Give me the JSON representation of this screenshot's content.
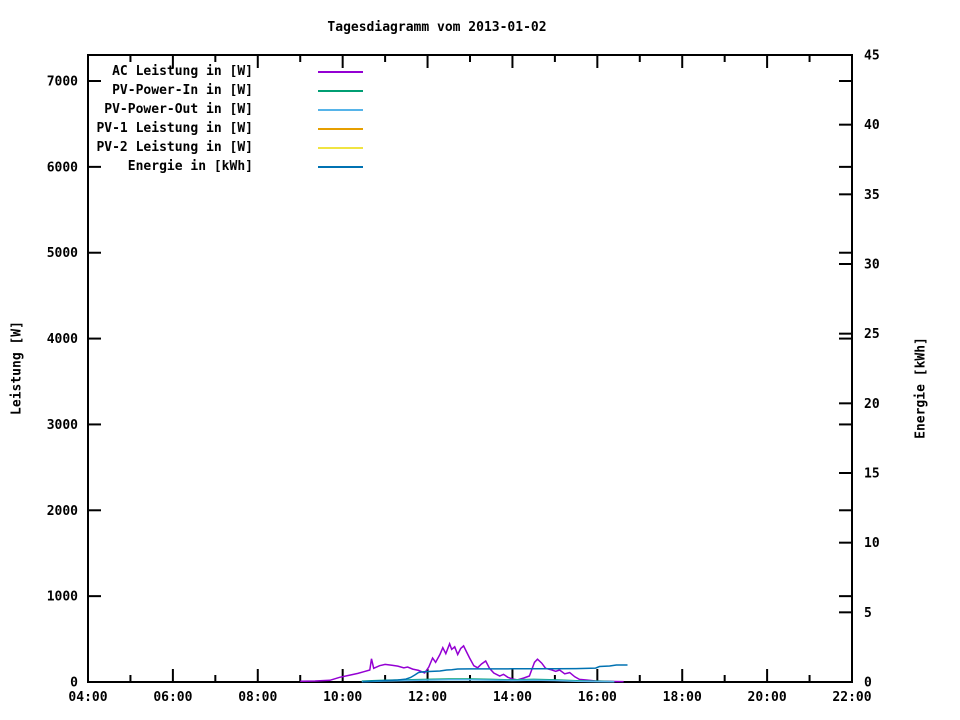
{
  "window": {
    "title": "Tagesdiagramm vom 2013-01-02"
  },
  "chart_data": {
    "type": "line",
    "title": "Tagesdiagramm vom 2013-01-02",
    "grid": false,
    "legend_position": "top-left-inside",
    "x_axis": {
      "unit": "time",
      "range_hours": [
        4,
        22
      ],
      "major_tick_labels": [
        "04:00",
        "06:00",
        "08:00",
        "10:00",
        "12:00",
        "14:00",
        "16:00",
        "18:00",
        "20:00",
        "22:00"
      ],
      "major_step_hours": 2,
      "minor_step_hours": 1
    },
    "y_left": {
      "label": "Leistung [W]",
      "ticks": [
        0,
        1000,
        2000,
        3000,
        4000,
        5000,
        6000,
        7000
      ],
      "range": [
        0,
        7303
      ]
    },
    "y_right": {
      "label": "Energie [kWh]",
      "ticks": [
        0,
        5,
        10,
        15,
        20,
        25,
        30,
        35,
        40,
        45
      ],
      "range": [
        0,
        45
      ]
    },
    "series": [
      {
        "name": "AC Leistung in [W]",
        "color": "#9400d3",
        "axis": "left",
        "points": [
          [
            9.0,
            8
          ],
          [
            9.35,
            12
          ],
          [
            9.7,
            20
          ],
          [
            9.93,
            55
          ],
          [
            10.17,
            80
          ],
          [
            10.36,
            100
          ],
          [
            10.5,
            120
          ],
          [
            10.64,
            140
          ],
          [
            10.68,
            270
          ],
          [
            10.73,
            160
          ],
          [
            10.87,
            190
          ],
          [
            11.0,
            205
          ],
          [
            11.16,
            195
          ],
          [
            11.3,
            185
          ],
          [
            11.44,
            165
          ],
          [
            11.53,
            175
          ],
          [
            11.65,
            150
          ],
          [
            11.79,
            135
          ],
          [
            11.93,
            105
          ],
          [
            12.03,
            175
          ],
          [
            12.12,
            280
          ],
          [
            12.19,
            230
          ],
          [
            12.29,
            320
          ],
          [
            12.36,
            400
          ],
          [
            12.43,
            330
          ],
          [
            12.52,
            445
          ],
          [
            12.57,
            380
          ],
          [
            12.64,
            410
          ],
          [
            12.71,
            320
          ],
          [
            12.78,
            390
          ],
          [
            12.85,
            420
          ],
          [
            12.92,
            350
          ],
          [
            12.99,
            280
          ],
          [
            13.09,
            190
          ],
          [
            13.18,
            165
          ],
          [
            13.27,
            210
          ],
          [
            13.37,
            245
          ],
          [
            13.46,
            160
          ],
          [
            13.56,
            105
          ],
          [
            13.7,
            70
          ],
          [
            13.79,
            90
          ],
          [
            13.89,
            55
          ],
          [
            14.0,
            35
          ],
          [
            14.12,
            25
          ],
          [
            14.26,
            45
          ],
          [
            14.4,
            70
          ],
          [
            14.52,
            230
          ],
          [
            14.59,
            265
          ],
          [
            14.69,
            220
          ],
          [
            14.78,
            160
          ],
          [
            14.9,
            145
          ],
          [
            15.02,
            125
          ],
          [
            15.11,
            140
          ],
          [
            15.23,
            95
          ],
          [
            15.35,
            110
          ],
          [
            15.47,
            60
          ],
          [
            15.58,
            30
          ],
          [
            15.77,
            22
          ],
          [
            15.96,
            12
          ],
          [
            16.17,
            8
          ],
          [
            16.41,
            6
          ],
          [
            16.62,
            5
          ]
        ]
      },
      {
        "name": "PV-Power-In in [W]",
        "color": "#009e73",
        "axis": "left",
        "points": [
          [
            10.45,
            10
          ],
          [
            11.0,
            20
          ],
          [
            11.5,
            25
          ],
          [
            12.0,
            30
          ],
          [
            12.5,
            35
          ],
          [
            13.0,
            35
          ],
          [
            13.5,
            30
          ],
          [
            14.0,
            25
          ],
          [
            14.5,
            30
          ],
          [
            15.0,
            25
          ],
          [
            15.5,
            15
          ],
          [
            16.0,
            10
          ],
          [
            16.4,
            5
          ]
        ]
      },
      {
        "name": "PV-Power-Out in [W]",
        "color": "#56b4e9",
        "axis": "left",
        "points": [
          [
            10.45,
            5
          ],
          [
            11.0,
            12
          ],
          [
            11.5,
            17
          ],
          [
            12.0,
            22
          ],
          [
            12.5,
            27
          ],
          [
            13.0,
            27
          ],
          [
            13.5,
            22
          ],
          [
            14.0,
            17
          ],
          [
            14.5,
            22
          ],
          [
            15.0,
            17
          ],
          [
            15.5,
            8
          ],
          [
            16.0,
            5
          ],
          [
            16.4,
            2
          ]
        ]
      },
      {
        "name": "PV-1 Leistung in [W]",
        "color": "#e69f00",
        "axis": "left",
        "points": [
          [
            9.0,
            0
          ],
          [
            16.6,
            0
          ]
        ]
      },
      {
        "name": "PV-2 Leistung in [W]",
        "color": "#f0e442",
        "axis": "left",
        "points": [
          [
            9.0,
            0
          ],
          [
            16.6,
            0
          ]
        ]
      },
      {
        "name": "Energie in [kWh]",
        "color": "#0072b2",
        "axis": "right",
        "points": [
          [
            10.47,
            0.02
          ],
          [
            10.76,
            0.07
          ],
          [
            11.04,
            0.11
          ],
          [
            11.3,
            0.14
          ],
          [
            11.49,
            0.21
          ],
          [
            11.6,
            0.32
          ],
          [
            11.7,
            0.5
          ],
          [
            11.79,
            0.68
          ],
          [
            11.91,
            0.74
          ],
          [
            12.1,
            0.76
          ],
          [
            12.29,
            0.79
          ],
          [
            12.45,
            0.86
          ],
          [
            12.57,
            0.88
          ],
          [
            12.71,
            0.93
          ],
          [
            13.0,
            0.94
          ],
          [
            13.5,
            0.94
          ],
          [
            14.0,
            0.95
          ],
          [
            14.5,
            0.95
          ],
          [
            15.0,
            0.95
          ],
          [
            15.5,
            0.96
          ],
          [
            15.96,
            1.0
          ],
          [
            16.05,
            1.11
          ],
          [
            16.29,
            1.15
          ],
          [
            16.45,
            1.22
          ],
          [
            16.71,
            1.22
          ]
        ]
      }
    ]
  }
}
